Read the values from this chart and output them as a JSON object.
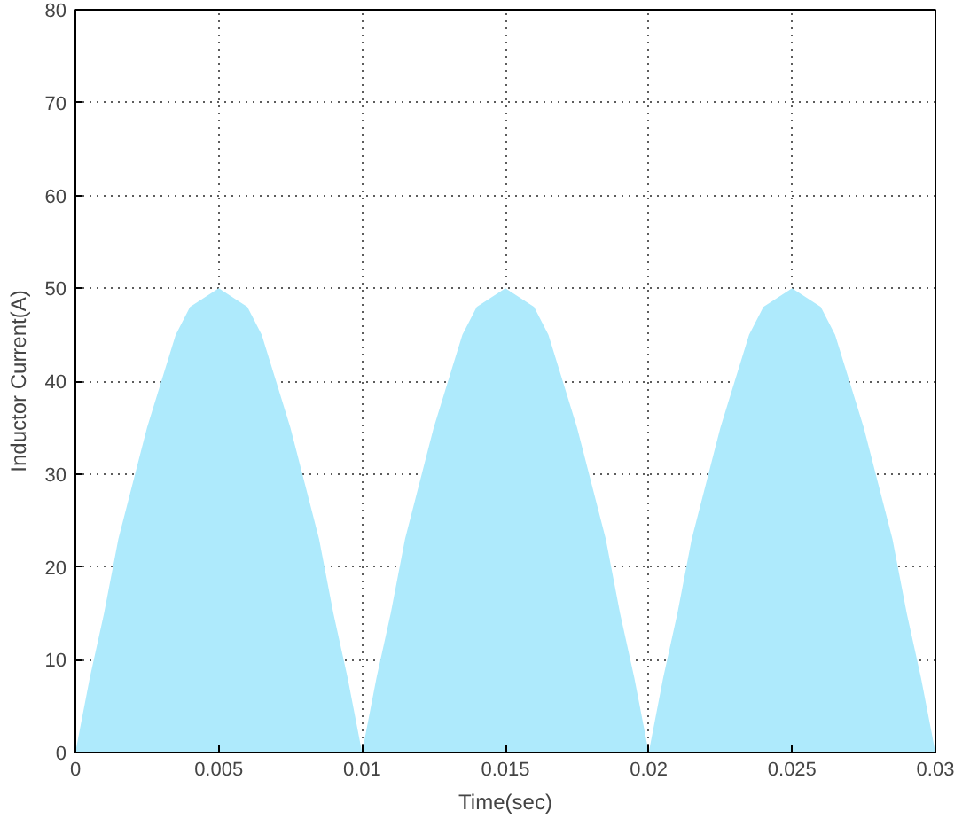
{
  "chart_data": {
    "type": "area",
    "xlabel": "Time(sec)",
    "ylabel": "Inductor Current(A)",
    "x": [
      0,
      0.0005,
      0.001,
      0.0015,
      0.002,
      0.0025,
      0.003,
      0.0035,
      0.004,
      0.0045,
      0.005,
      0.0055,
      0.006,
      0.0065,
      0.007,
      0.0075,
      0.008,
      0.0085,
      0.009,
      0.0095,
      0.01,
      0.0105,
      0.011,
      0.0115,
      0.012,
      0.0125,
      0.013,
      0.0135,
      0.014,
      0.0145,
      0.015,
      0.0155,
      0.016,
      0.0165,
      0.017,
      0.0175,
      0.018,
      0.0185,
      0.019,
      0.0195,
      0.02,
      0.0205,
      0.021,
      0.0215,
      0.022,
      0.0225,
      0.023,
      0.0235,
      0.024,
      0.0245,
      0.025,
      0.0255,
      0.026,
      0.0265,
      0.027,
      0.0275,
      0.028,
      0.0285,
      0.029,
      0.0295,
      0.03
    ],
    "series": [
      {
        "color": "#aeeafc",
        "values": [
          0,
          8,
          15,
          23,
          29,
          35,
          40,
          45,
          48,
          49,
          50,
          49,
          48,
          45,
          40,
          35,
          29,
          23,
          15,
          8,
          0,
          8,
          15,
          23,
          29,
          35,
          40,
          45,
          48,
          49,
          50,
          49,
          48,
          45,
          40,
          35,
          29,
          23,
          15,
          8,
          0,
          8,
          15,
          23,
          29,
          35,
          40,
          45,
          48,
          49,
          50,
          49,
          48,
          45,
          40,
          35,
          29,
          23,
          15,
          8,
          0
        ]
      }
    ],
    "xlim": [
      0,
      0.03
    ],
    "ylim": [
      0,
      80
    ],
    "xticks": [
      0,
      0.005,
      0.01,
      0.015,
      0.02,
      0.025,
      0.03
    ],
    "yticks": [
      0,
      10,
      20,
      30,
      40,
      50,
      60,
      70,
      80
    ],
    "grid": true
  }
}
